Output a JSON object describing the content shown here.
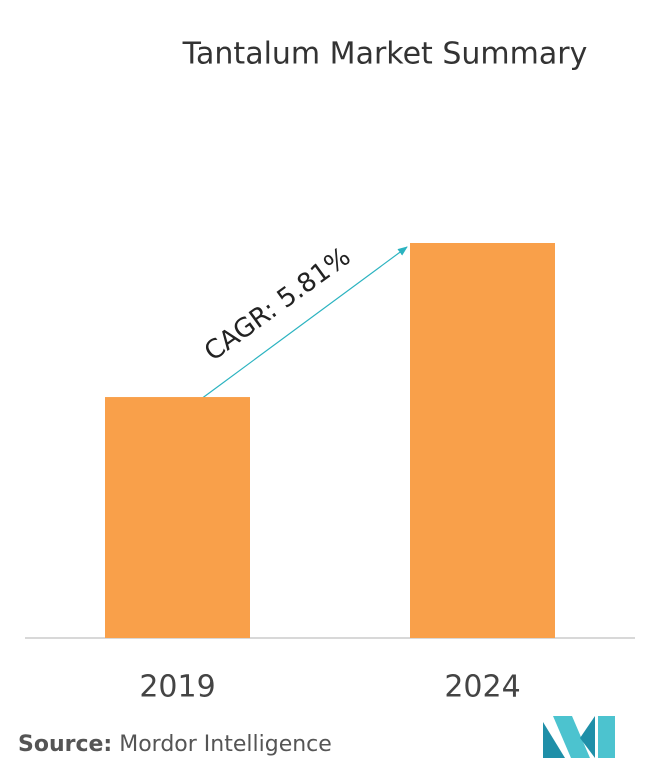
{
  "chart_data": {
    "type": "bar",
    "title": "Tantalum Market Summary",
    "categories": [
      "2019",
      "2024"
    ],
    "values": [
      61,
      100
    ],
    "color": "#f9a04a",
    "ylim": [
      0,
      100
    ],
    "annotation": "CAGR: 5.81%",
    "source_label": "Source:",
    "source": "Mordor Intelligence"
  }
}
